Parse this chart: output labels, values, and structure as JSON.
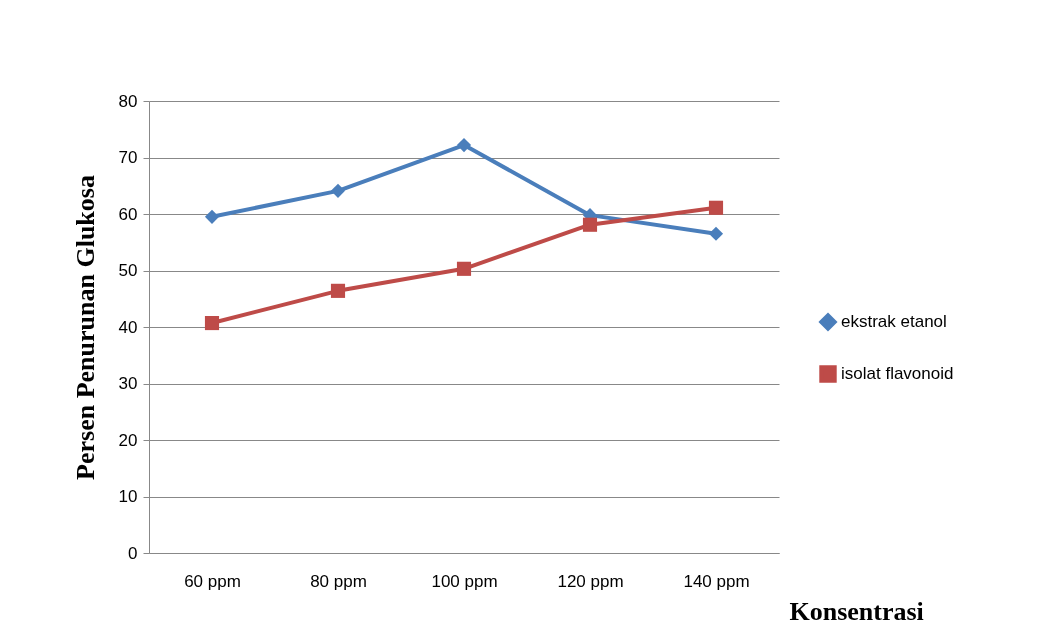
{
  "chart_data": {
    "type": "line",
    "xlabel": "Konsentrasi",
    "ylabel": "Persen Penurunan Glukosa",
    "categories": [
      "60 ppm",
      "80 ppm",
      "100 ppm",
      "120 ppm",
      "140 ppm"
    ],
    "series": [
      {
        "name": "ekstrak etanol",
        "color": "#4a7ebb",
        "marker": "diamond",
        "values": [
          59.5,
          64.1,
          72.2,
          59.8,
          56.5
        ]
      },
      {
        "name": "isolat flavonoid",
        "color": "#be4b48",
        "marker": "square",
        "values": [
          40.7,
          46.4,
          50.3,
          58.1,
          61.1
        ]
      }
    ],
    "ylim": [
      0,
      80
    ],
    "yticks": [
      0,
      10,
      20,
      30,
      40,
      50,
      60,
      70,
      80
    ],
    "grid": "y",
    "legend": "right"
  }
}
